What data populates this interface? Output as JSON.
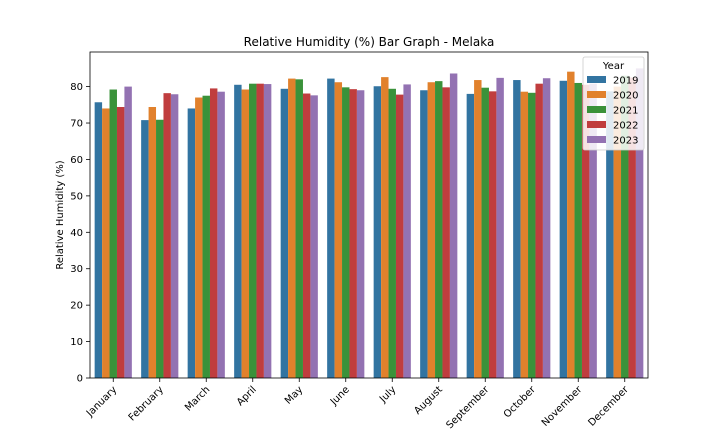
{
  "chart_data": {
    "type": "bar",
    "title": "Relative Humidity (%) Bar Graph - Melaka",
    "xlabel": "",
    "ylabel": "Relative Humidity (%)",
    "ylim": [
      0,
      89.5
    ],
    "yticks": [
      0,
      10,
      20,
      30,
      40,
      50,
      60,
      70,
      80
    ],
    "grid": false,
    "legend": {
      "title": "Year",
      "placement": "top-right"
    },
    "categories": [
      "January",
      "February",
      "March",
      "April",
      "May",
      "June",
      "July",
      "August",
      "September",
      "October",
      "November",
      "December"
    ],
    "series": [
      {
        "name": "2019",
        "color": "#3274a1",
        "values": [
          75.7,
          70.8,
          74.0,
          80.5,
          79.4,
          82.2,
          80.1,
          79.0,
          78.0,
          81.8,
          81.6,
          78.7
        ]
      },
      {
        "name": "2020",
        "color": "#e1812c",
        "values": [
          74.0,
          74.4,
          77.0,
          79.2,
          82.2,
          81.2,
          82.6,
          81.2,
          81.8,
          78.6,
          84.1,
          80.0
        ]
      },
      {
        "name": "2021",
        "color": "#3a923a",
        "values": [
          79.2,
          70.9,
          77.5,
          80.8,
          82.0,
          79.8,
          79.4,
          81.5,
          79.7,
          78.3,
          81.0,
          83.0
        ]
      },
      {
        "name": "2022",
        "color": "#c03d3e",
        "values": [
          74.4,
          78.2,
          79.5,
          80.8,
          78.1,
          79.3,
          77.8,
          79.8,
          78.7,
          80.8,
          80.5,
          82.5
        ]
      },
      {
        "name": "2023",
        "color": "#9372b2",
        "values": [
          80.0,
          77.9,
          78.6,
          80.7,
          77.6,
          79.0,
          80.6,
          83.6,
          82.4,
          82.3,
          80.8,
          85.0
        ]
      }
    ]
  }
}
